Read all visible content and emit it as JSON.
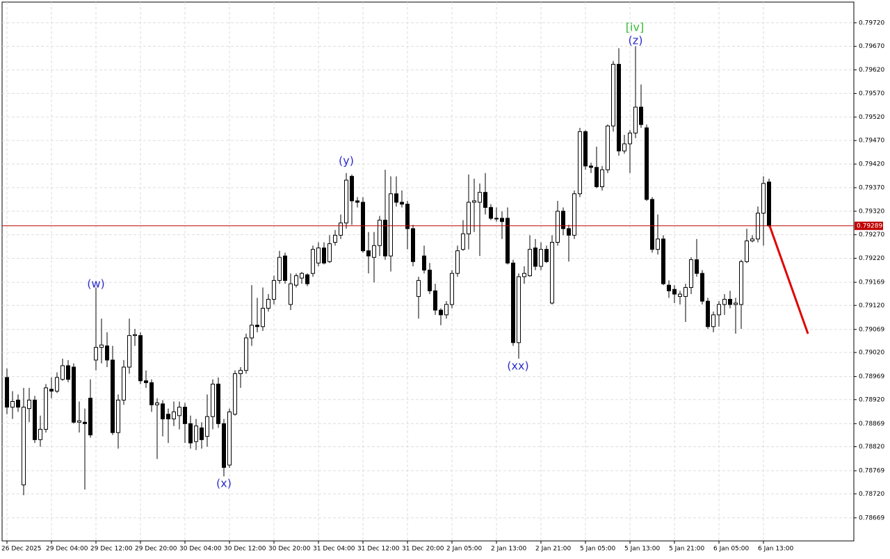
{
  "chart_data": {
    "type": "candlestick",
    "annotations": [
      "(w)",
      "(x)",
      "(y)",
      "(xx)",
      "(z)",
      "[iv]"
    ],
    "categories": [
      "26 Dec 2025",
      null,
      null,
      null,
      null,
      null,
      null,
      null,
      "29 Dec 04:00",
      null,
      null,
      null,
      null,
      null,
      null,
      null,
      "29 Dec 12:00",
      null,
      null,
      null,
      null,
      null,
      null,
      null,
      "29 Dec 20:00",
      null,
      null,
      null,
      null,
      null,
      null,
      null,
      "30 Dec 04:00",
      null,
      null,
      null,
      null,
      null,
      null,
      null,
      "30 Dec 12:00",
      null,
      null,
      null,
      null,
      null,
      null,
      null,
      "30 Dec 20:00",
      null,
      null,
      null,
      null,
      null,
      null,
      null,
      "31 Dec 04:00",
      null,
      null,
      null,
      null,
      null,
      null,
      null,
      "31 Dec 12:00",
      null,
      null,
      null,
      null,
      null,
      null,
      null,
      "31 Dec 20:00",
      null,
      null,
      null,
      null,
      null,
      null,
      null,
      "2 Jan 05:00",
      null,
      null,
      null,
      null,
      null,
      null,
      null,
      "2 Jan 13:00",
      null,
      null,
      null,
      null,
      null,
      null,
      null,
      "2 Jan 21:00",
      null,
      null,
      null,
      null,
      null,
      null,
      null,
      "5 Jan 05:00",
      null,
      null,
      null,
      null,
      null,
      null,
      null,
      "5 Jan 13:00",
      null,
      null,
      null,
      null,
      null,
      null,
      null,
      "5 Jan 21:00",
      null,
      null,
      null,
      null,
      null,
      null,
      null,
      "6 Jan 05:00",
      null,
      null,
      null,
      null,
      null,
      null,
      null,
      "6 Jan 13:00",
      null
    ],
    "ohlc": [
      [
        0.78967,
        0.78986,
        0.78889,
        0.78904
      ],
      [
        0.78904,
        0.78938,
        0.78879,
        0.78916
      ],
      [
        0.78919,
        0.78931,
        0.78894,
        0.78904
      ],
      [
        0.78739,
        0.78945,
        0.78717,
        0.78904
      ],
      [
        0.78901,
        0.78945,
        0.78872,
        0.78919
      ],
      [
        0.78919,
        0.78928,
        0.78828,
        0.78835
      ],
      [
        0.78835,
        0.78886,
        0.7882,
        0.78857
      ],
      [
        0.78857,
        0.78953,
        0.7885,
        0.78945
      ],
      [
        0.78942,
        0.78967,
        0.78923,
        0.78938
      ],
      [
        0.78938,
        0.78978,
        0.78934,
        0.78967
      ],
      [
        0.78963,
        0.79007,
        0.7896,
        0.78992
      ],
      [
        0.78992,
        0.79004,
        0.78957,
        0.78963
      ],
      [
        0.78989,
        0.78997,
        0.78869,
        0.78872
      ],
      [
        0.78872,
        0.78916,
        0.7885,
        0.78875
      ],
      [
        0.78872,
        0.78901,
        0.78729,
        0.78869
      ],
      [
        0.78923,
        0.78963,
        0.78839,
        0.78845
      ],
      [
        0.79004,
        0.79158,
        0.78982,
        0.79031
      ],
      [
        0.79031,
        0.79092,
        0.78997,
        0.79036
      ],
      [
        0.79034,
        0.79063,
        0.78989,
        0.79004
      ],
      [
        0.79004,
        0.79034,
        0.78845,
        0.7885
      ],
      [
        0.7885,
        0.78931,
        0.78816,
        0.78919
      ],
      [
        0.78919,
        0.79004,
        0.78909,
        0.78989
      ],
      [
        0.78989,
        0.79092,
        0.78975,
        0.79056
      ],
      [
        0.79056,
        0.7907,
        0.79034,
        0.79058
      ],
      [
        0.79056,
        0.79063,
        0.78953,
        0.7896
      ],
      [
        0.7896,
        0.78982,
        0.78945,
        0.78956
      ],
      [
        0.78956,
        0.78963,
        0.78894,
        0.78909
      ],
      [
        0.78909,
        0.78923,
        0.78794,
        0.78913
      ],
      [
        0.78911,
        0.78919,
        0.78842,
        0.78879
      ],
      [
        0.78889,
        0.78901,
        0.78828,
        0.78879
      ],
      [
        0.78879,
        0.78916,
        0.78864,
        0.78894
      ],
      [
        0.78886,
        0.78916,
        0.78857,
        0.78904
      ],
      [
        0.78904,
        0.78913,
        0.78828,
        0.78869
      ],
      [
        0.78869,
        0.78886,
        0.78816,
        0.78828
      ],
      [
        0.78831,
        0.78879,
        0.78813,
        0.78864
      ],
      [
        0.7886,
        0.78872,
        0.78816,
        0.78835
      ],
      [
        0.78842,
        0.78931,
        0.7882,
        0.78884
      ],
      [
        0.78884,
        0.78963,
        0.78857,
        0.78953
      ],
      [
        0.78953,
        0.78967,
        0.7886,
        0.78869
      ],
      [
        0.78869,
        0.78879,
        0.78757,
        0.78776
      ],
      [
        0.78781,
        0.78901,
        0.78775,
        0.78894
      ],
      [
        0.78889,
        0.78982,
        0.78886,
        0.78975
      ],
      [
        0.78975,
        0.78989,
        0.78945,
        0.78982
      ],
      [
        0.78982,
        0.7906,
        0.78975,
        0.79051
      ],
      [
        0.79051,
        0.79163,
        0.79034,
        0.79078
      ],
      [
        0.79078,
        0.79136,
        0.79063,
        0.79075
      ],
      [
        0.79075,
        0.79158,
        0.79066,
        0.79114
      ],
      [
        0.79114,
        0.79144,
        0.79107,
        0.79133
      ],
      [
        0.79133,
        0.79183,
        0.79122,
        0.79173
      ],
      [
        0.79173,
        0.79236,
        0.79166,
        0.79222
      ],
      [
        0.79225,
        0.79232,
        0.79166,
        0.79173
      ],
      [
        0.79122,
        0.79188,
        0.7911,
        0.79166
      ],
      [
        0.79163,
        0.79188,
        0.79158,
        0.79183
      ],
      [
        0.79178,
        0.79191,
        0.79166,
        0.79188
      ],
      [
        0.79185,
        0.79188,
        0.79161,
        0.79166
      ],
      [
        0.79188,
        0.79247,
        0.79181,
        0.79239
      ],
      [
        0.7921,
        0.79254,
        0.79203,
        0.79242
      ],
      [
        0.79242,
        0.79254,
        0.79207,
        0.7921
      ],
      [
        0.79213,
        0.79269,
        0.7921,
        0.79251
      ],
      [
        0.79254,
        0.7928,
        0.79247,
        0.79269
      ],
      [
        0.79269,
        0.79313,
        0.79261,
        0.79295
      ],
      [
        0.79295,
        0.79401,
        0.79283,
        0.79386
      ],
      [
        0.79394,
        0.79398,
        0.79291,
        0.79342
      ],
      [
        0.79342,
        0.7935,
        0.79328,
        0.79339
      ],
      [
        0.79339,
        0.7935,
        0.79232,
        0.79236
      ],
      [
        0.79236,
        0.79276,
        0.79188,
        0.79225
      ],
      [
        0.79222,
        0.79276,
        0.79169,
        0.79247
      ],
      [
        0.79247,
        0.7931,
        0.79225,
        0.79301
      ],
      [
        0.79301,
        0.79408,
        0.79217,
        0.79225
      ],
      [
        0.79225,
        0.79394,
        0.79192,
        0.79357
      ],
      [
        0.79357,
        0.79394,
        0.7933,
        0.79339
      ],
      [
        0.79339,
        0.79364,
        0.79328,
        0.79335
      ],
      [
        0.79335,
        0.79342,
        0.79239,
        0.79283
      ],
      [
        0.79283,
        0.79291,
        0.79203,
        0.79213
      ],
      [
        0.79139,
        0.79181,
        0.79092,
        0.79173
      ],
      [
        0.79225,
        0.79247,
        0.79188,
        0.79195
      ],
      [
        0.79195,
        0.7921,
        0.79144,
        0.79151
      ],
      [
        0.79151,
        0.79166,
        0.791,
        0.7911
      ],
      [
        0.7911,
        0.79114,
        0.79078,
        0.791
      ],
      [
        0.791,
        0.79129,
        0.79092,
        0.79122
      ],
      [
        0.79122,
        0.79195,
        0.79114,
        0.79188
      ],
      [
        0.79188,
        0.79247,
        0.79181,
        0.79236
      ],
      [
        0.79239,
        0.79301,
        0.79236,
        0.79272
      ],
      [
        0.79272,
        0.79398,
        0.79239,
        0.79339
      ],
      [
        0.79339,
        0.79389,
        0.79276,
        0.79342
      ],
      [
        0.79339,
        0.79379,
        0.79225,
        0.7936
      ],
      [
        0.7936,
        0.79401,
        0.79313,
        0.79328
      ],
      [
        0.79328,
        0.79335,
        0.79301,
        0.79305
      ],
      [
        0.79304,
        0.79328,
        0.79298,
        0.79305
      ],
      [
        0.79305,
        0.7932,
        0.79261,
        0.79298
      ],
      [
        0.79305,
        0.79328,
        0.79207,
        0.7921
      ],
      [
        0.7921,
        0.79217,
        0.79034,
        0.79041
      ],
      [
        0.79041,
        0.79188,
        0.79007,
        0.79181
      ],
      [
        0.79181,
        0.79203,
        0.79166,
        0.79188
      ],
      [
        0.79183,
        0.79269,
        0.79181,
        0.79239
      ],
      [
        0.79242,
        0.79261,
        0.79195,
        0.79203
      ],
      [
        0.79203,
        0.79254,
        0.79195,
        0.79239
      ],
      [
        0.79239,
        0.79247,
        0.7921,
        0.79213
      ],
      [
        0.79125,
        0.79269,
        0.79122,
        0.79254
      ],
      [
        0.79254,
        0.79342,
        0.79247,
        0.7932
      ],
      [
        0.7932,
        0.79328,
        0.79269,
        0.79283
      ],
      [
        0.79283,
        0.79291,
        0.79213,
        0.79269
      ],
      [
        0.79269,
        0.79364,
        0.79261,
        0.79357
      ],
      [
        0.79357,
        0.79497,
        0.7935,
        0.79489
      ],
      [
        0.79489,
        0.79492,
        0.79408,
        0.79416
      ],
      [
        0.79416,
        0.79423,
        0.79401,
        0.79413
      ],
      [
        0.79413,
        0.79457,
        0.79369,
        0.79372
      ],
      [
        0.79372,
        0.79416,
        0.79364,
        0.79408
      ],
      [
        0.79408,
        0.79504,
        0.79401,
        0.79501
      ],
      [
        0.79501,
        0.79639,
        0.79489,
        0.79632
      ],
      [
        0.79632,
        0.79666,
        0.79438,
        0.79448
      ],
      [
        0.79448,
        0.79482,
        0.79442,
        0.79463
      ],
      [
        0.79463,
        0.79492,
        0.79401,
        0.79486
      ],
      [
        0.79486,
        0.7967,
        0.79475,
        0.79541
      ],
      [
        0.79541,
        0.79589,
        0.79497,
        0.79504
      ],
      [
        0.79497,
        0.79504,
        0.79342,
        0.79345
      ],
      [
        0.79345,
        0.7935,
        0.79232,
        0.79239
      ],
      [
        0.79239,
        0.79313,
        0.79228,
        0.79261
      ],
      [
        0.79261,
        0.79269,
        0.79163,
        0.79166
      ],
      [
        0.79163,
        0.79173,
        0.79136,
        0.79151
      ],
      [
        0.79154,
        0.79163,
        0.79125,
        0.79144
      ],
      [
        0.79139,
        0.79151,
        0.79122,
        0.79144
      ],
      [
        0.79139,
        0.79166,
        0.79085,
        0.79158
      ],
      [
        0.79158,
        0.79222,
        0.79144,
        0.79217
      ],
      [
        0.79217,
        0.79261,
        0.79181,
        0.79188
      ],
      [
        0.79188,
        0.79195,
        0.79122,
        0.79129
      ],
      [
        0.79129,
        0.79136,
        0.7907,
        0.79075
      ],
      [
        0.79075,
        0.79107,
        0.79063,
        0.791
      ],
      [
        0.791,
        0.79129,
        0.79075,
        0.79122
      ],
      [
        0.79122,
        0.79144,
        0.791,
        0.79133
      ],
      [
        0.79133,
        0.79151,
        0.79114,
        0.79122
      ],
      [
        0.79122,
        0.79136,
        0.7906,
        0.79125
      ],
      [
        0.79122,
        0.79217,
        0.7907,
        0.79213
      ],
      [
        0.79213,
        0.79283,
        0.7921,
        0.79257
      ],
      [
        0.79257,
        0.79269,
        0.79254,
        0.79261
      ],
      [
        0.79261,
        0.7933,
        0.79254,
        0.79316
      ],
      [
        0.79316,
        0.79394,
        0.79247,
        0.79379
      ],
      [
        0.79382,
        0.79389,
        0.79286,
        0.79289
      ]
    ],
    "last_price": 0.79289,
    "ylim": [
      0.7862,
      0.79764
    ],
    "yticks": [
      {
        "value": 0.7972,
        "label": "0.79720"
      },
      {
        "value": 0.7967,
        "label": "0.79670"
      },
      {
        "value": 0.7962,
        "label": "0.79620"
      },
      {
        "value": 0.7957,
        "label": "0.79570"
      },
      {
        "value": 0.7952,
        "label": "0.79520"
      },
      {
        "value": 0.7947,
        "label": "0.79470"
      },
      {
        "value": 0.7942,
        "label": "0.79420"
      },
      {
        "value": 0.7937,
        "label": "0.79370"
      },
      {
        "value": 0.7932,
        "label": "0.79320"
      },
      {
        "value": 0.7927,
        "label": "0.79270"
      },
      {
        "value": 0.7922,
        "label": "0.79220"
      },
      0.79169,
      {
        "value": 0.7912,
        "label": "0.79120"
      },
      0.79069,
      {
        "value": 0.7902,
        "label": "0.79020"
      },
      0.78969,
      {
        "value": 0.7892,
        "label": "0.78920"
      },
      0.78869,
      {
        "value": 0.7882,
        "label": "0.78820"
      },
      0.78769,
      {
        "value": 0.7872,
        "label": "0.78720"
      },
      0.78669
    ],
    "grid": true,
    "up_color": "#ffffff",
    "down_color": "#000000",
    "price_line_color": "#c00000"
  }
}
